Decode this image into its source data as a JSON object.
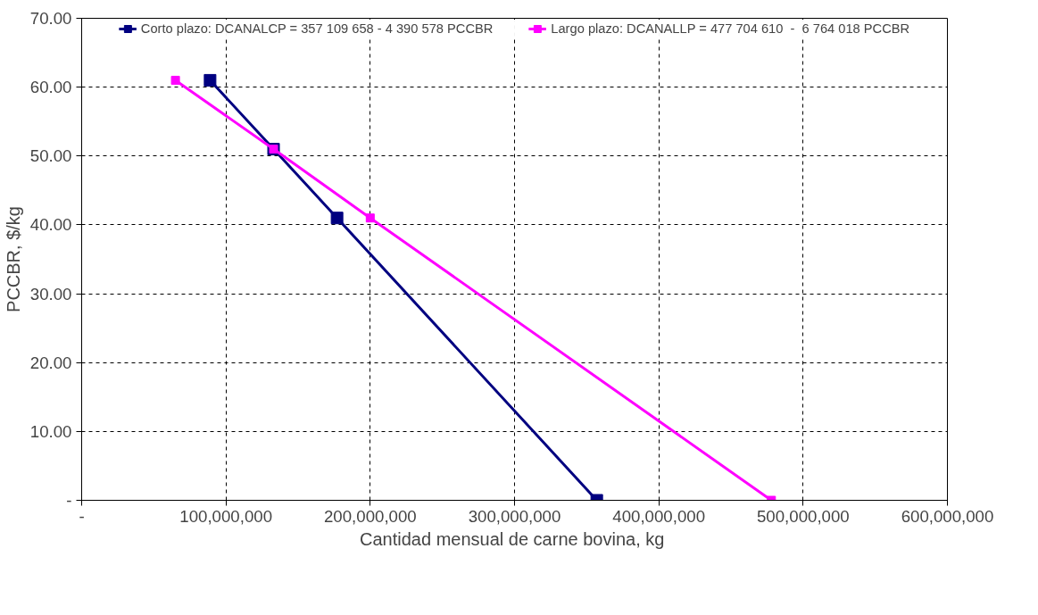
{
  "chart_data": {
    "type": "line",
    "xlabel": "Cantidad  mensual de carne bovina, kg",
    "ylabel": "PCCBR, $/kg",
    "xlim": [
      0,
      600000000
    ],
    "ylim": [
      0,
      70
    ],
    "xticks": [
      {
        "value": 0,
        "label": "-"
      },
      {
        "value": 100000000,
        "label": "100,000,000"
      },
      {
        "value": 200000000,
        "label": "200,000,000"
      },
      {
        "value": 300000000,
        "label": "300,000,000"
      },
      {
        "value": 400000000,
        "label": "400,000,000"
      },
      {
        "value": 500000000,
        "label": "500,000,000"
      },
      {
        "value": 600000000,
        "label": "600,000,000"
      }
    ],
    "yticks": [
      {
        "value": 0,
        "label": "-"
      },
      {
        "value": 10,
        "label": "10.00"
      },
      {
        "value": 20,
        "label": "20.00"
      },
      {
        "value": 30,
        "label": "30.00"
      },
      {
        "value": 40,
        "label": "40.00"
      },
      {
        "value": 50,
        "label": "50.00"
      },
      {
        "value": 60,
        "label": "60.00"
      },
      {
        "value": 70,
        "label": "70.00"
      }
    ],
    "grid": true,
    "legend": "top",
    "marker": "square",
    "line_style": "solid",
    "series": [
      {
        "name": "Corto plazo: DCANALCP = 357 109 658 - 4 390 578 PCCBR",
        "color": "#000080",
        "x": [
          89000000,
          133000000,
          177000000,
          357000000
        ],
        "values": [
          61,
          51,
          41,
          0
        ]
      },
      {
        "name": "Largo plazo: DCANALLP = 477 704 610  -  6 764 018 PCCBR",
        "color": "#ff00ff",
        "x": [
          65000000,
          133000000,
          200000000,
          478000000
        ],
        "values": [
          61,
          51,
          41,
          0
        ]
      }
    ]
  }
}
